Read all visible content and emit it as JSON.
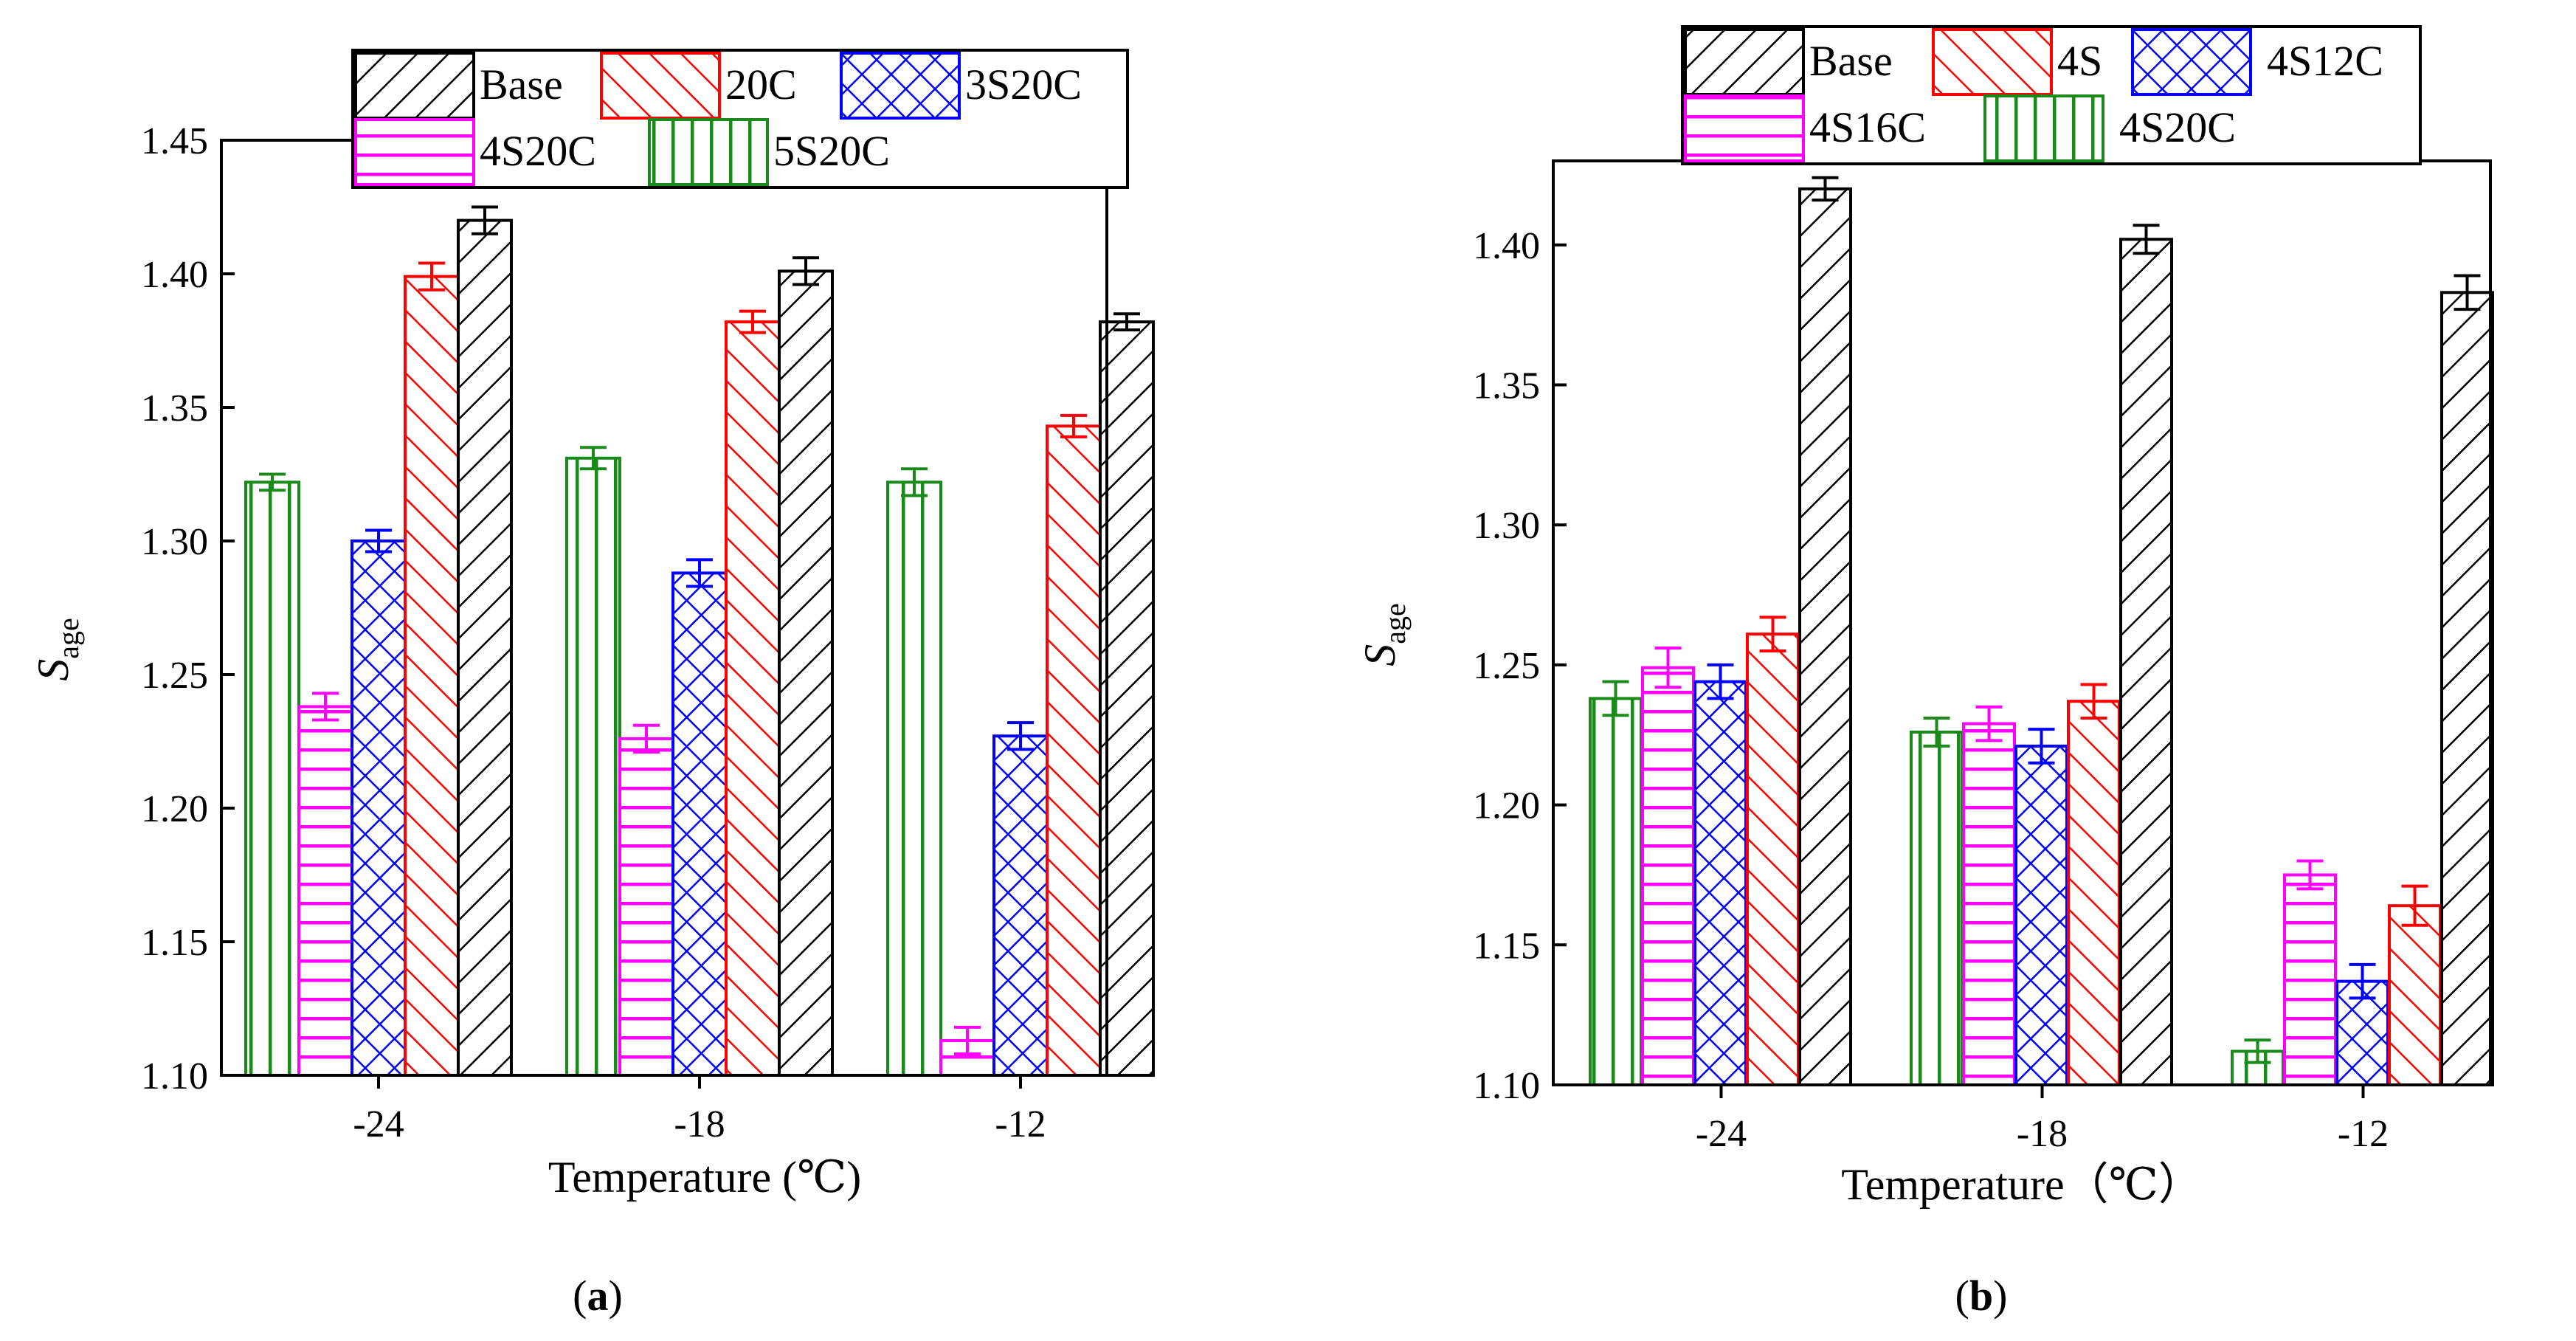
{
  "chart_data": [
    {
      "panel": "a",
      "type": "bar",
      "title": "",
      "xlabel": "Temperature (℃)",
      "ylabel_main": "S",
      "ylabel_sub": "age",
      "categories": [
        "-24",
        "-18",
        "-12"
      ],
      "ylim": [
        1.1,
        1.45
      ],
      "yticks": [
        1.1,
        1.15,
        1.2,
        1.25,
        1.3,
        1.35,
        1.4,
        1.45
      ],
      "ytick_labels": [
        "1.10",
        "1.15",
        "1.20",
        "1.25",
        "1.30",
        "1.35",
        "1.40",
        "1.45"
      ],
      "series": [
        {
          "name": "5S20C",
          "color": "#1a8a1a",
          "pattern": "vertical",
          "values": [
            1.322,
            1.331,
            1.322
          ],
          "errors": [
            0.003,
            0.004,
            0.005
          ]
        },
        {
          "name": "4S20C",
          "color": "#ff00ff",
          "pattern": "horizontal",
          "values": [
            1.238,
            1.226,
            1.113
          ],
          "errors": [
            0.005,
            0.005,
            0.005
          ]
        },
        {
          "name": "3S20C",
          "color": "#0000ff",
          "pattern": "crosshatch",
          "values": [
            1.3,
            1.288,
            1.227
          ],
          "errors": [
            0.004,
            0.005,
            0.005
          ]
        },
        {
          "name": "20C",
          "color": "#ff0000",
          "pattern": "backslash",
          "values": [
            1.399,
            1.382,
            1.343
          ],
          "errors": [
            0.005,
            0.004,
            0.004
          ]
        },
        {
          "name": "Base",
          "color": "#000000",
          "pattern": "slash",
          "values": [
            1.42,
            1.401,
            1.382
          ],
          "errors": [
            0.005,
            0.005,
            0.003
          ]
        }
      ],
      "legend": {
        "placement": "top-right",
        "rows": [
          [
            "Base",
            "20C",
            "3S20C"
          ],
          [
            "4S20C",
            "5S20C"
          ]
        ]
      }
    },
    {
      "panel": "b",
      "type": "bar",
      "title": "",
      "xlabel": "Temperature（℃）",
      "ylabel_main": "S",
      "ylabel_sub": "age",
      "categories": [
        "-24",
        "-18",
        "-12"
      ],
      "ylim": [
        1.1,
        1.43
      ],
      "yticks": [
        1.1,
        1.15,
        1.2,
        1.25,
        1.3,
        1.35,
        1.4
      ],
      "ytick_labels": [
        "1.10",
        "1.15",
        "1.20",
        "1.25",
        "1.30",
        "1.35",
        "1.40"
      ],
      "series": [
        {
          "name": "4S20C",
          "color": "#1a8a1a",
          "pattern": "vertical",
          "values": [
            1.238,
            1.226,
            1.112
          ],
          "errors": [
            0.006,
            0.005,
            0.004
          ]
        },
        {
          "name": "4S16C",
          "color": "#ff00ff",
          "pattern": "horizontal",
          "values": [
            1.249,
            1.229,
            1.175
          ],
          "errors": [
            0.007,
            0.006,
            0.005
          ]
        },
        {
          "name": "4S12C",
          "color": "#0000ff",
          "pattern": "crosshatch",
          "values": [
            1.244,
            1.221,
            1.137
          ],
          "errors": [
            0.006,
            0.006,
            0.006
          ]
        },
        {
          "name": "4S",
          "color": "#ff0000",
          "pattern": "backslash",
          "values": [
            1.261,
            1.237,
            1.164
          ],
          "errors": [
            0.006,
            0.006,
            0.007
          ]
        },
        {
          "name": "Base",
          "color": "#000000",
          "pattern": "slash",
          "values": [
            1.42,
            1.402,
            1.383
          ],
          "errors": [
            0.004,
            0.005,
            0.006
          ]
        }
      ],
      "legend": {
        "placement": "top-right",
        "rows": [
          [
            "Base",
            "4S",
            "4S12C"
          ],
          [
            "4S16C",
            "4S20C"
          ]
        ]
      }
    }
  ],
  "panel_labels": {
    "a": {
      "open": "(",
      "letter": "a",
      "close": ")"
    },
    "b": {
      "open": "(",
      "letter": "b",
      "close": ")"
    }
  }
}
